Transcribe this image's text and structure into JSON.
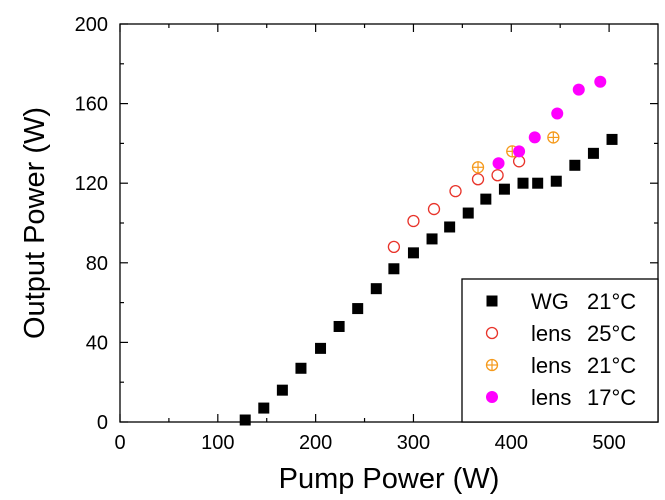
{
  "chart_data": {
    "type": "scatter",
    "title": "",
    "xlabel": "Pump Power (W)",
    "ylabel": "Output Power (W)",
    "xlim": [
      0,
      550
    ],
    "ylim": [
      0,
      200
    ],
    "xticks": [
      0,
      100,
      200,
      300,
      400,
      500
    ],
    "yticks": [
      0,
      40,
      80,
      120,
      160,
      200
    ],
    "xtick_labels": [
      "0",
      "100",
      "200",
      "300",
      "400",
      "500"
    ],
    "ytick_labels": [
      "0",
      "40",
      "80",
      "120",
      "160",
      "200"
    ],
    "grid": false,
    "legend_position": "bottom-right",
    "series": [
      {
        "name": "WG 21°C",
        "legend_parts": [
          "WG",
          "21°C"
        ],
        "marker": "filled-square",
        "color": "#000000",
        "x": [
          128,
          147,
          166,
          185,
          205,
          224,
          243,
          262,
          280,
          300,
          319,
          337,
          356,
          374,
          393,
          412,
          427,
          446,
          465,
          484,
          503
        ],
        "y": [
          1,
          7,
          16,
          27,
          37,
          48,
          57,
          67,
          77,
          85,
          92,
          98,
          105,
          112,
          117,
          120,
          120,
          121,
          129,
          135,
          142
        ]
      },
      {
        "name": "lens 25°C",
        "legend_parts": [
          "lens",
          "25°C"
        ],
        "marker": "open-circle",
        "color": "#e8332a",
        "x": [
          280,
          300,
          321,
          343,
          366,
          386,
          408
        ],
        "y": [
          88,
          101,
          107,
          116,
          122,
          124,
          131
        ]
      },
      {
        "name": "lens 21°C",
        "legend_parts": [
          "lens",
          "21°C"
        ],
        "marker": "crossed-circle",
        "color": "#f59a1c",
        "x": [
          366,
          401,
          443
        ],
        "y": [
          128,
          136,
          143
        ]
      },
      {
        "name": "lens 17°C",
        "legend_parts": [
          "lens",
          "17°C"
        ],
        "marker": "filled-circle",
        "color": "#ff00ff",
        "x": [
          387,
          408,
          424,
          447,
          469,
          491
        ],
        "y": [
          130,
          136,
          143,
          155,
          167,
          171
        ]
      }
    ]
  }
}
